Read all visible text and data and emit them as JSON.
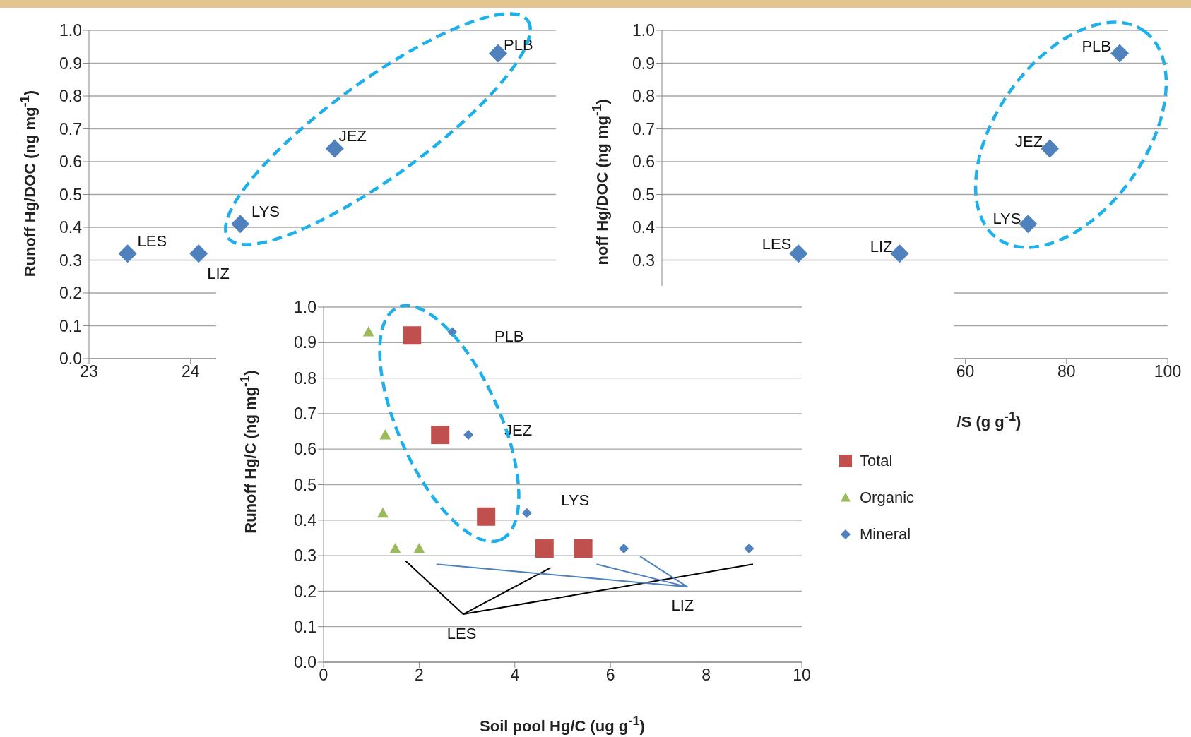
{
  "chart_data": [
    {
      "type": "scatter",
      "ylabel": "Runoff Hg/DOC (ng mg$^{-1}$)",
      "x": [
        23.38,
        24.08,
        24.49,
        25.42,
        27.03
      ],
      "marker": "diamond",
      "grid": "y",
      "series": [
        {
          "color": "#4f81bd",
          "values": [
            0.32,
            0.32,
            0.41,
            0.64,
            0.93
          ]
        }
      ],
      "xlim": [
        23,
        27.6
      ],
      "xticks": [
        23,
        24
      ],
      "ylim": [
        0,
        1
      ],
      "yticks": [
        {
          "value": 0,
          "label": "0.0"
        },
        0.1,
        0.2,
        0.3,
        0.4,
        0.5,
        0.6,
        0.7,
        0.8,
        0.9,
        {
          "value": 1,
          "label": "1.0"
        }
      ],
      "annotations": [
        {
          "text": "LES",
          "x": 23.38,
          "y": 0.32
        },
        {
          "text": "LIZ",
          "x": 24.08,
          "y": 0.32
        },
        {
          "text": "LYS",
          "x": 24.49,
          "y": 0.41
        },
        {
          "text": "JEZ",
          "x": 25.42,
          "y": 0.64
        },
        {
          "text": "PLB",
          "x": 27.03,
          "y": 0.93
        }
      ]
    },
    {
      "type": "scatter",
      "xlabel": "/S (g g$^{-1}$)",
      "ylabel": "noff Hg/DOC (ng mg$^{-1}$)",
      "x": [
        27,
        47,
        72.4,
        76.7,
        90.5
      ],
      "marker": "diamond",
      "grid": "y",
      "series": [
        {
          "color": "#4f81bd",
          "values": [
            0.32,
            0.32,
            0.41,
            0.64,
            0.93
          ]
        }
      ],
      "xlim": [
        0,
        100
      ],
      "xticks": [
        60,
        80,
        100
      ],
      "ylim": [
        0,
        1
      ],
      "yticks": [
        {
          "value": 0,
          "label": null
        },
        {
          "value": 0.1,
          "label": null
        },
        {
          "value": 0.2,
          "label": null
        },
        0.3,
        0.4,
        0.5,
        0.6,
        0.7,
        0.8,
        0.9,
        {
          "value": 1,
          "label": "1.0"
        }
      ],
      "annotations": [
        {
          "text": "LES",
          "x": 27,
          "y": 0.32
        },
        {
          "text": "LIZ",
          "x": 47,
          "y": 0.32
        },
        {
          "text": "LYS",
          "x": 72.4,
          "y": 0.41
        },
        {
          "text": "JEZ",
          "x": 76.7,
          "y": 0.64
        },
        {
          "text": "PLB",
          "x": 90.5,
          "y": 0.93
        }
      ]
    },
    {
      "type": "scatter",
      "xlabel": "Soil pool Hg/C (ug g$^{-1}$)",
      "ylabel": "Runoff Hg/C (ng mg$^{-1}$)",
      "grid": "y",
      "legend": "right",
      "series": [
        {
          "name": "Total",
          "color": "#c0504d",
          "marker": "square",
          "x": [
            1.85,
            2.44,
            3.4,
            4.62,
            5.43
          ],
          "values": [
            0.92,
            0.64,
            0.41,
            0.32,
            0.32
          ]
        },
        {
          "name": "Organic",
          "color": "#9bbb59",
          "marker": "triangle",
          "x": [
            0.94,
            1.29,
            1.24,
            1.5,
            2.0
          ],
          "values": [
            0.93,
            0.64,
            0.42,
            0.32,
            0.32
          ]
        },
        {
          "name": "Mineral",
          "color": "#4f81bd",
          "marker": "diamond",
          "x": [
            2.69,
            3.03,
            4.25,
            6.28,
            8.9
          ],
          "values": [
            0.93,
            0.64,
            0.42,
            0.32,
            0.32
          ]
        }
      ],
      "xlim": [
        0,
        10
      ],
      "xticks": [
        0,
        2,
        4,
        6,
        8,
        10
      ],
      "ylim": [
        0,
        1
      ],
      "yticks": [
        {
          "value": 0,
          "label": "0.0"
        },
        0.1,
        0.2,
        0.3,
        0.4,
        0.5,
        0.6,
        0.7,
        0.8,
        0.9,
        {
          "value": 1,
          "label": "1.0"
        }
      ],
      "annotations": [
        "PLB",
        "JEZ",
        "LYS",
        "LIZ",
        "LES"
      ]
    }
  ]
}
